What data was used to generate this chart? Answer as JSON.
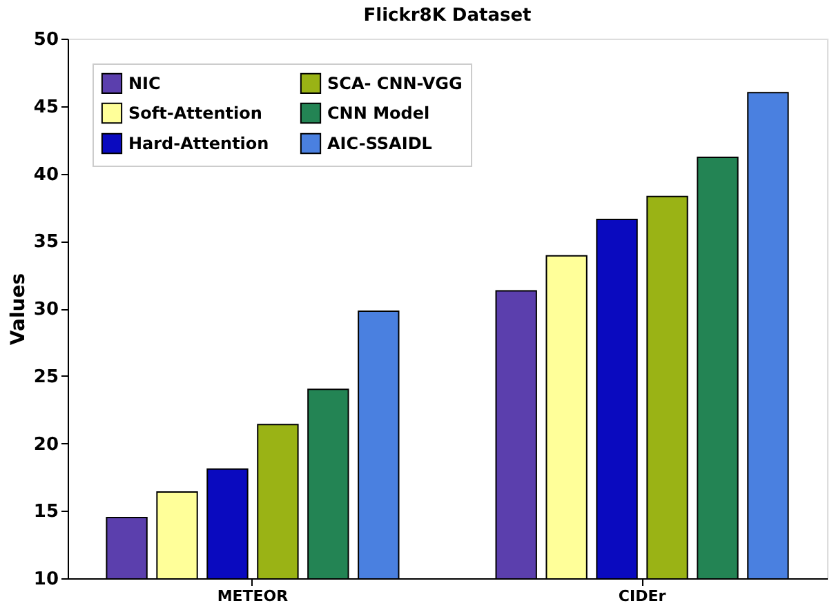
{
  "chart_data": {
    "type": "bar",
    "title": "Flickr8K Dataset",
    "ylabel": "Values",
    "categories": [
      "METEOR",
      "CIDEr"
    ],
    "series": [
      {
        "name": "NIC",
        "color": "#5b3fad",
        "values": [
          14.5,
          31.3
        ]
      },
      {
        "name": "Soft-Attention",
        "color": "#ffff99",
        "values": [
          16.4,
          33.9
        ]
      },
      {
        "name": "Hard-Attention",
        "color": "#0a0abf",
        "values": [
          18.1,
          36.6
        ]
      },
      {
        "name": "SCA- CNN-VGG",
        "color": "#9ab315",
        "values": [
          21.4,
          38.3
        ]
      },
      {
        "name": "CNN Model",
        "color": "#238454",
        "values": [
          24.0,
          41.2
        ]
      },
      {
        "name": "AIC-SSAIDL",
        "color": "#4a80e0",
        "values": [
          29.8,
          46.0
        ]
      }
    ],
    "ylim": [
      10,
      50
    ],
    "yticks": [
      10,
      15,
      20,
      25,
      30,
      35,
      40,
      45,
      50
    ],
    "grid": false,
    "legend": "top left"
  }
}
